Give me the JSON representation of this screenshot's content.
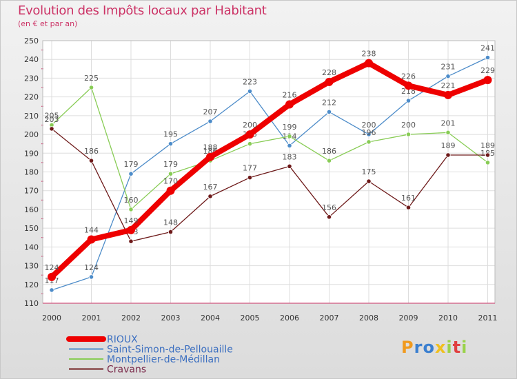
{
  "chart_data": {
    "type": "line",
    "title": "Evolution des Impôts locaux par Habitant",
    "subtitle": "(en € et par an)",
    "xlabel": "",
    "ylabel": "",
    "ylim": [
      110,
      250
    ],
    "yticks": [
      110,
      120,
      130,
      140,
      150,
      160,
      170,
      180,
      190,
      200,
      210,
      220,
      230,
      240,
      250
    ],
    "categories": [
      "2000",
      "2001",
      "2002",
      "2003",
      "2004",
      "2005",
      "2006",
      "2007",
      "2008",
      "2009",
      "2010",
      "2011"
    ],
    "grid": true,
    "legend_position": "bottom-left",
    "series": [
      {
        "name": "Saint-Simon-de-Pellouaille",
        "color": "#4d8cc9",
        "values": [
          117,
          124,
          179,
          195,
          207,
          223,
          194,
          212,
          200,
          218,
          231,
          241
        ]
      },
      {
        "name": "Montpellier-de-Médillan",
        "color": "#88cc55",
        "values": [
          205,
          225,
          160,
          179,
          186,
          195,
          199,
          186,
          196,
          200,
          201,
          185
        ]
      },
      {
        "name": "Cravans",
        "color": "#6e1a1a",
        "values": [
          203,
          186,
          143,
          148,
          167,
          177,
          183,
          156,
          175,
          161,
          189,
          189
        ]
      },
      {
        "name": "RIOUX",
        "color": "#ee0000",
        "values": [
          124,
          144,
          149,
          170,
          188,
          200,
          216,
          228,
          238,
          226,
          221,
          229
        ]
      }
    ],
    "legend_order": [
      "RIOUX",
      "Saint-Simon-de-Pellouaille",
      "Montpellier-de-Médillan",
      "Cravans"
    ]
  },
  "logo": {
    "letters": [
      "P",
      "r",
      "o",
      "x",
      "i",
      "t",
      "i"
    ],
    "colors": [
      "#f09a1e",
      "#3a7fd0",
      "#3a7fd0",
      "#f0c020",
      "#9ad24a",
      "#e04040",
      "#9ad24a"
    ]
  }
}
